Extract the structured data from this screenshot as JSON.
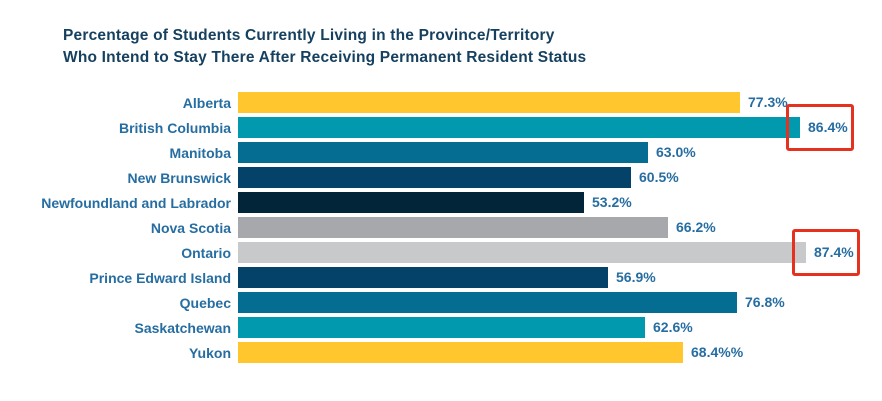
{
  "chart_title": {
    "line1": "Percentage of Students Currently Living in the Province/Territory",
    "line2": "Who Intend to Stay There After Receiving Permanent Resident Status"
  },
  "colors": {
    "background": "#FFFFFF",
    "title_text": "#16405F",
    "label_text": "#266DA1",
    "highlight_box": "#E5321F",
    "palette": {
      "yellow": "#FFC62E",
      "teal": "#0099AD",
      "blue": "#056C92",
      "dark_blue": "#05426A",
      "navy": "#02253A",
      "gray": "#A6A8AB",
      "light_gray": "#C7C9CB"
    }
  },
  "rows": [
    {
      "label": "Alberta",
      "value": 77.3,
      "value_label": "77.3%",
      "color": "#FFC62E",
      "highlighted": false
    },
    {
      "label": "British Columbia",
      "value": 86.4,
      "value_label": "86.4%",
      "color": "#0099AD",
      "highlighted": true
    },
    {
      "label": "Manitoba",
      "value": 63.0,
      "value_label": "63.0%",
      "color": "#056C92",
      "highlighted": false
    },
    {
      "label": "New Brunswick",
      "value": 60.5,
      "value_label": "60.5%",
      "color": "#05426A",
      "highlighted": false
    },
    {
      "label": "Newfoundland and Labrador",
      "value": 53.2,
      "value_label": "53.2%",
      "color": "#02253A",
      "highlighted": false
    },
    {
      "label": "Nova Scotia",
      "value": 66.2,
      "value_label": "66.2%",
      "color": "#A6A8AB",
      "highlighted": false
    },
    {
      "label": "Ontario",
      "value": 87.4,
      "value_label": "87.4%",
      "color": "#C7C9CB",
      "highlighted": true
    },
    {
      "label": "Prince Edward Island",
      "value": 56.9,
      "value_label": "56.9%",
      "color": "#05426A",
      "highlighted": false
    },
    {
      "label": "Quebec",
      "value": 76.8,
      "value_label": "76.8%",
      "color": "#056C92",
      "highlighted": false
    },
    {
      "label": "Saskatchewan",
      "value": 62.6,
      "value_label": "62.6%",
      "color": "#0099AD",
      "highlighted": false
    },
    {
      "label": "Yukon",
      "value": 68.4,
      "value_label": "68.4%%",
      "color": "#FFC62E",
      "highlighted": false
    }
  ],
  "chart_data": {
    "type": "bar",
    "orientation": "horizontal",
    "title": "Percentage of Students Currently Living in the Province/Territory Who Intend to Stay There After Receiving Permanent Resident Status",
    "categories": [
      "Alberta",
      "British Columbia",
      "Manitoba",
      "New Brunswick",
      "Newfoundland and Labrador",
      "Nova Scotia",
      "Ontario",
      "Prince Edward Island",
      "Quebec",
      "Saskatchewan",
      "Yukon"
    ],
    "values": [
      77.3,
      86.4,
      63.0,
      60.5,
      53.2,
      66.2,
      87.4,
      56.9,
      76.8,
      62.6,
      68.4
    ],
    "data_labels": [
      "77.3%",
      "86.4%",
      "63.0%",
      "60.5%",
      "53.2%",
      "66.2%",
      "87.4%",
      "56.9%",
      "76.8%",
      "62.6%",
      "68.4%%"
    ],
    "highlighted_categories": [
      "British Columbia",
      "Ontario"
    ],
    "xlabel": "",
    "ylabel": "",
    "xlim": [
      0,
      100
    ],
    "grid": false,
    "legend": false,
    "axis_ticks_visible": false
  }
}
